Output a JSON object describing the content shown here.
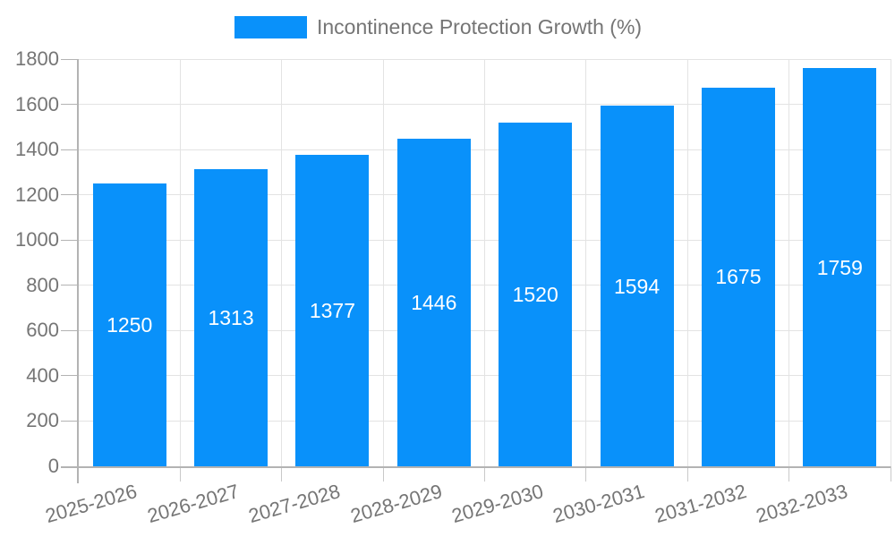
{
  "chart_data": {
    "type": "bar",
    "title": "Incontinence Protection Growth (%)",
    "categories": [
      "2025-2026",
      "2026-2027",
      "2027-2028",
      "2028-2029",
      "2029-2030",
      "2030-2031",
      "2031-2032",
      "2032-2033"
    ],
    "series": [
      {
        "name": "Incontinence Protection Growth (%)",
        "values": [
          1250,
          1313,
          1377,
          1446,
          1520,
          1594,
          1675,
          1759
        ]
      }
    ],
    "bar_value_labels": [
      1250,
      1313,
      1377,
      1446,
      1520,
      1594,
      1675,
      1759
    ],
    "xlabel": "",
    "ylabel": "",
    "ylim": [
      0,
      1800
    ],
    "ytick_step": 200,
    "yticks": [
      0,
      200,
      400,
      600,
      800,
      1000,
      1200,
      1400,
      1600,
      1800
    ],
    "grid": true,
    "legend_position": "top",
    "colors": {
      "bar": "#0991fa",
      "bar_label": "#ffffff",
      "axis_text": "#757575",
      "grid_line": "#e3e3e3",
      "axis_line": "#b3b3b3",
      "tick_line": "#c9c9c9",
      "background": "#ffffff"
    }
  }
}
